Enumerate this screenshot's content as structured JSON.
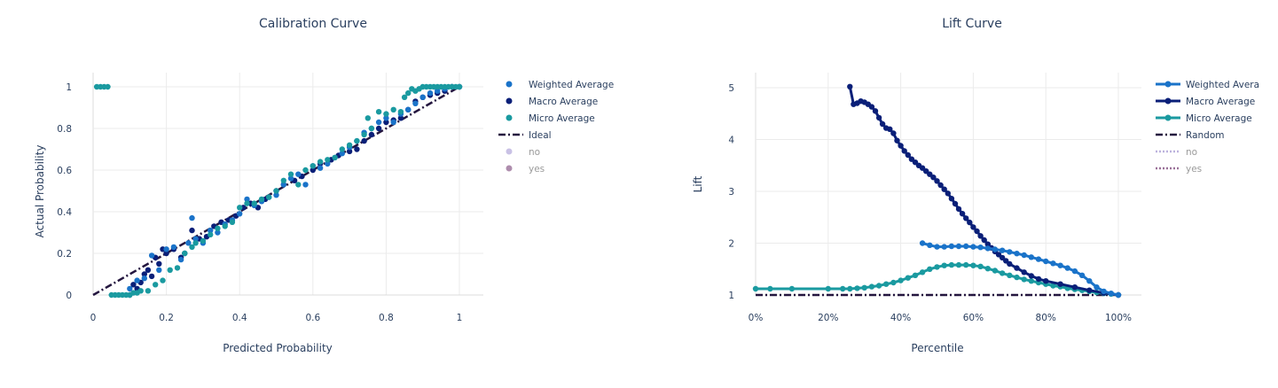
{
  "colors": {
    "weighted": "#1a73c9",
    "macro": "#0a1f78",
    "micro": "#1a9aa0",
    "ideal": "#24163f",
    "no": "#bcb2de",
    "yes": "#9a7198"
  },
  "chart_data": [
    {
      "type": "scatter",
      "title": "Calibration Curve",
      "xlabel": "Predicted Probability",
      "ylabel": "Actual Probability",
      "xlim": [
        0,
        1
      ],
      "ylim": [
        0,
        1
      ],
      "xticks": [
        "0",
        "0.2",
        "0.4",
        "0.6",
        "0.8",
        "1"
      ],
      "yticks": [
        "0",
        "0.2",
        "0.4",
        "0.6",
        "0.8",
        "1"
      ],
      "legend_position": "right",
      "legend": [
        {
          "label": "Weighted Average",
          "symbol": "dot",
          "color_key": "weighted",
          "visible": true
        },
        {
          "label": "Macro Average",
          "symbol": "dot",
          "color_key": "macro",
          "visible": true
        },
        {
          "label": "Micro Average",
          "symbol": "dot",
          "color_key": "micro",
          "visible": true
        },
        {
          "label": "Ideal",
          "symbol": "dashdot",
          "color_key": "ideal",
          "visible": true
        },
        {
          "label": "no",
          "symbol": "dot",
          "color_key": "no",
          "visible": false
        },
        {
          "label": "yes",
          "symbol": "dot",
          "color_key": "yes",
          "visible": false
        }
      ],
      "series": [
        {
          "name": "Ideal",
          "color_key": "ideal",
          "mode": "line",
          "dash": "dashdot",
          "x": [
            0,
            1
          ],
          "y": [
            0,
            1
          ]
        },
        {
          "name": "Macro Average",
          "color_key": "macro",
          "mode": "markers",
          "x": [
            0.1,
            0.11,
            0.12,
            0.13,
            0.14,
            0.15,
            0.16,
            0.17,
            0.18,
            0.19,
            0.2,
            0.22,
            0.24,
            0.25,
            0.27,
            0.29,
            0.31,
            0.33,
            0.35,
            0.37,
            0.39,
            0.41,
            0.43,
            0.45,
            0.47,
            0.5,
            0.52,
            0.55,
            0.57,
            0.6,
            0.62,
            0.65,
            0.67,
            0.7,
            0.72,
            0.74,
            0.76,
            0.78,
            0.8,
            0.82,
            0.84,
            0.86,
            0.88,
            0.9,
            0.92,
            0.94,
            0.96,
            0.98,
            1.0
          ],
          "y": [
            0.0,
            0.05,
            0.03,
            0.06,
            0.1,
            0.12,
            0.09,
            0.18,
            0.15,
            0.22,
            0.2,
            0.22,
            0.18,
            0.2,
            0.31,
            0.27,
            0.28,
            0.33,
            0.35,
            0.36,
            0.38,
            0.42,
            0.44,
            0.42,
            0.46,
            0.5,
            0.53,
            0.55,
            0.57,
            0.6,
            0.63,
            0.65,
            0.67,
            0.69,
            0.7,
            0.74,
            0.77,
            0.8,
            0.83,
            0.84,
            0.85,
            0.89,
            0.93,
            0.95,
            0.96,
            0.97,
            0.98,
            1.0,
            1.0
          ]
        },
        {
          "name": "Weighted Average",
          "color_key": "weighted",
          "mode": "markers",
          "x": [
            0.1,
            0.12,
            0.14,
            0.16,
            0.18,
            0.2,
            0.22,
            0.24,
            0.26,
            0.27,
            0.28,
            0.3,
            0.32,
            0.34,
            0.36,
            0.38,
            0.4,
            0.42,
            0.44,
            0.46,
            0.48,
            0.5,
            0.52,
            0.54,
            0.56,
            0.58,
            0.6,
            0.62,
            0.64,
            0.66,
            0.68,
            0.7,
            0.72,
            0.74,
            0.76,
            0.78,
            0.8,
            0.82,
            0.84,
            0.86,
            0.88,
            0.9,
            0.92,
            0.94,
            0.96,
            0.98,
            1.0
          ],
          "y": [
            0.03,
            0.07,
            0.08,
            0.19,
            0.12,
            0.22,
            0.23,
            0.17,
            0.25,
            0.37,
            0.27,
            0.25,
            0.31,
            0.3,
            0.34,
            0.36,
            0.39,
            0.46,
            0.43,
            0.45,
            0.47,
            0.48,
            0.53,
            0.56,
            0.58,
            0.53,
            0.62,
            0.61,
            0.63,
            0.66,
            0.68,
            0.71,
            0.74,
            0.78,
            0.8,
            0.83,
            0.85,
            0.83,
            0.87,
            0.89,
            0.92,
            0.95,
            0.97,
            0.98,
            0.99,
            1.0,
            1.0
          ]
        },
        {
          "name": "Micro Average",
          "color_key": "micro",
          "mode": "markers",
          "x": [
            0.01,
            0.02,
            0.03,
            0.04,
            0.05,
            0.06,
            0.07,
            0.08,
            0.09,
            0.1,
            0.11,
            0.12,
            0.13,
            0.15,
            0.17,
            0.19,
            0.21,
            0.23,
            0.25,
            0.27,
            0.28,
            0.3,
            0.32,
            0.34,
            0.36,
            0.38,
            0.4,
            0.42,
            0.44,
            0.46,
            0.48,
            0.5,
            0.52,
            0.54,
            0.56,
            0.58,
            0.6,
            0.62,
            0.64,
            0.66,
            0.68,
            0.7,
            0.72,
            0.74,
            0.75,
            0.76,
            0.78,
            0.8,
            0.82,
            0.84,
            0.85,
            0.86,
            0.87,
            0.88,
            0.89,
            0.9,
            0.91,
            0.92,
            0.93,
            0.94,
            0.95,
            0.96,
            0.97,
            0.98,
            0.99,
            1.0
          ],
          "y": [
            1.0,
            1.0,
            1.0,
            1.0,
            0.0,
            0.0,
            0.0,
            0.0,
            0.0,
            0.0,
            0.01,
            0.01,
            0.02,
            0.02,
            0.05,
            0.07,
            0.12,
            0.13,
            0.2,
            0.23,
            0.25,
            0.26,
            0.29,
            0.32,
            0.33,
            0.35,
            0.42,
            0.44,
            0.44,
            0.46,
            0.47,
            0.5,
            0.55,
            0.58,
            0.53,
            0.6,
            0.62,
            0.64,
            0.65,
            0.66,
            0.7,
            0.72,
            0.74,
            0.77,
            0.85,
            0.8,
            0.88,
            0.87,
            0.89,
            0.88,
            0.95,
            0.97,
            0.99,
            0.98,
            0.99,
            1.0,
            1.0,
            1.0,
            1.0,
            1.0,
            1.0,
            1.0,
            1.0,
            1.0,
            1.0,
            1.0
          ]
        }
      ]
    },
    {
      "type": "line",
      "title": "Lift Curve",
      "xlabel": "Percentile",
      "ylabel": "Lift",
      "xlim": [
        0,
        100
      ],
      "ylim": [
        1,
        5
      ],
      "xticks": [
        "0%",
        "20%",
        "40%",
        "60%",
        "80%",
        "100%"
      ],
      "yticks": [
        "1",
        "2",
        "3",
        "4",
        "5"
      ],
      "legend_position": "right",
      "legend": [
        {
          "label": "Weighted Avera",
          "symbol": "line-dot",
          "color_key": "weighted",
          "visible": true
        },
        {
          "label": "Macro Average",
          "symbol": "line-dot",
          "color_key": "macro",
          "visible": true
        },
        {
          "label": "Micro Average",
          "symbol": "line-dot",
          "color_key": "micro",
          "visible": true
        },
        {
          "label": "Random",
          "symbol": "dashdot",
          "color_key": "ideal",
          "visible": true
        },
        {
          "label": "no",
          "symbol": "dotline",
          "color_key": "no",
          "visible": false
        },
        {
          "label": "yes",
          "symbol": "dotline",
          "color_key": "yes",
          "visible": false
        }
      ],
      "series": [
        {
          "name": "Random",
          "color_key": "ideal",
          "mode": "line",
          "dash": "dashdot",
          "x": [
            0,
            100
          ],
          "y": [
            1,
            1
          ]
        },
        {
          "name": "Micro Average",
          "color_key": "micro",
          "mode": "lines+markers",
          "x": [
            0,
            4,
            10,
            20,
            24,
            26,
            28,
            30,
            32,
            34,
            36,
            38,
            40,
            42,
            44,
            46,
            48,
            50,
            52,
            54,
            56,
            58,
            60,
            62,
            64,
            66,
            68,
            70,
            72,
            74,
            76,
            78,
            80,
            82,
            84,
            86,
            88,
            90,
            92,
            94,
            96,
            98,
            100
          ],
          "y": [
            1.12,
            1.12,
            1.12,
            1.12,
            1.12,
            1.12,
            1.13,
            1.14,
            1.16,
            1.18,
            1.21,
            1.24,
            1.28,
            1.33,
            1.38,
            1.44,
            1.5,
            1.54,
            1.57,
            1.58,
            1.58,
            1.58,
            1.57,
            1.55,
            1.51,
            1.47,
            1.42,
            1.38,
            1.34,
            1.3,
            1.27,
            1.24,
            1.21,
            1.18,
            1.16,
            1.13,
            1.11,
            1.09,
            1.07,
            1.05,
            1.03,
            1.02,
            1.0
          ]
        },
        {
          "name": "Macro Average",
          "color_key": "macro",
          "mode": "lines+markers",
          "x": [
            26,
            27,
            28,
            29,
            30,
            31,
            32,
            33,
            34,
            35,
            36,
            37,
            38,
            39,
            40,
            41,
            42,
            43,
            44,
            45,
            46,
            47,
            48,
            49,
            50,
            51,
            52,
            53,
            54,
            55,
            56,
            57,
            58,
            59,
            60,
            61,
            62,
            63,
            64,
            65,
            66,
            67,
            68,
            69,
            70,
            72,
            74,
            76,
            78,
            80,
            84,
            88,
            92,
            96,
            100
          ],
          "y": [
            5.02,
            4.68,
            4.7,
            4.74,
            4.72,
            4.68,
            4.63,
            4.55,
            4.42,
            4.3,
            4.22,
            4.2,
            4.12,
            3.98,
            3.88,
            3.78,
            3.7,
            3.62,
            3.56,
            3.5,
            3.45,
            3.39,
            3.33,
            3.27,
            3.2,
            3.12,
            3.04,
            2.96,
            2.86,
            2.76,
            2.66,
            2.57,
            2.48,
            2.4,
            2.31,
            2.23,
            2.14,
            2.06,
            1.98,
            1.91,
            1.84,
            1.78,
            1.72,
            1.66,
            1.6,
            1.52,
            1.44,
            1.37,
            1.31,
            1.27,
            1.21,
            1.15,
            1.09,
            1.04,
            1.0
          ]
        },
        {
          "name": "Weighted Average",
          "color_key": "weighted",
          "mode": "lines+markers",
          "x": [
            46,
            48,
            50,
            52,
            54,
            56,
            58,
            60,
            62,
            64,
            66,
            68,
            70,
            72,
            74,
            76,
            78,
            80,
            82,
            84,
            86,
            88,
            90,
            92,
            94,
            96,
            98,
            100
          ],
          "y": [
            2.0,
            1.96,
            1.93,
            1.93,
            1.94,
            1.94,
            1.94,
            1.93,
            1.92,
            1.9,
            1.88,
            1.86,
            1.83,
            1.8,
            1.77,
            1.73,
            1.69,
            1.65,
            1.61,
            1.57,
            1.52,
            1.46,
            1.38,
            1.27,
            1.15,
            1.07,
            1.03,
            1.0
          ]
        }
      ]
    }
  ]
}
